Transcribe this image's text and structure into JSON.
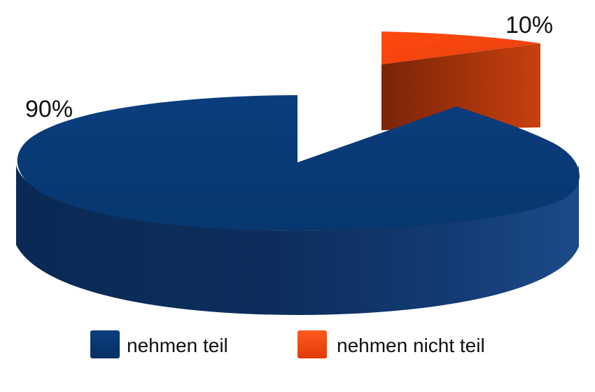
{
  "chart_data": {
    "type": "pie",
    "categories": [
      "nehmen teil",
      "nehmen nicht teil"
    ],
    "values": [
      90,
      10
    ],
    "data_labels": [
      "90%",
      "10%"
    ],
    "colors": [
      "#0a3a7a",
      "#f0400f"
    ],
    "exploded_slice": "nehmen nicht teil",
    "legend_position": "bottom",
    "style": "3d"
  }
}
